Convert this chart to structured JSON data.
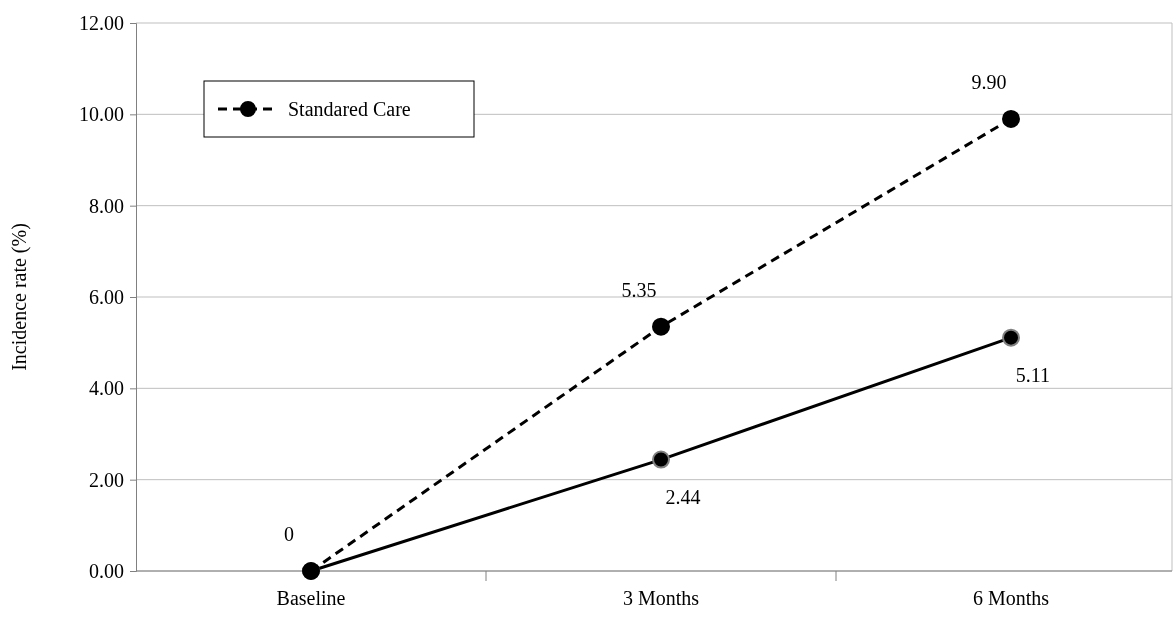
{
  "chart_data": {
    "type": "line",
    "ylabel": "Incidence rate (%)",
    "categories": [
      "Baseline",
      "3 Months",
      "6 Months"
    ],
    "series": [
      {
        "color": "#000000",
        "values": [
          0,
          2.44,
          5.11
        ],
        "line_style": "solid",
        "marker": "circle",
        "value_labels": [
          null,
          "2.44",
          "5.11"
        ]
      },
      {
        "name": "Standared Care",
        "color": "#000000",
        "values": [
          0,
          5.35,
          9.9
        ],
        "line_style": "dashed",
        "marker": "circle",
        "value_labels": [
          "0",
          "5.35",
          "9.90"
        ]
      }
    ],
    "ylim": [
      0,
      12
    ],
    "yticks": [
      {
        "value": 0,
        "label": "0.00"
      },
      {
        "value": 2,
        "label": "2.00"
      },
      {
        "value": 4,
        "label": "4.00"
      },
      {
        "value": 6,
        "label": "6.00"
      },
      {
        "value": 8,
        "label": "8.00"
      },
      {
        "value": 10,
        "label": "10.00"
      },
      {
        "value": 12,
        "label": "12.00"
      }
    ],
    "grid": "y",
    "legend": "top left"
  }
}
